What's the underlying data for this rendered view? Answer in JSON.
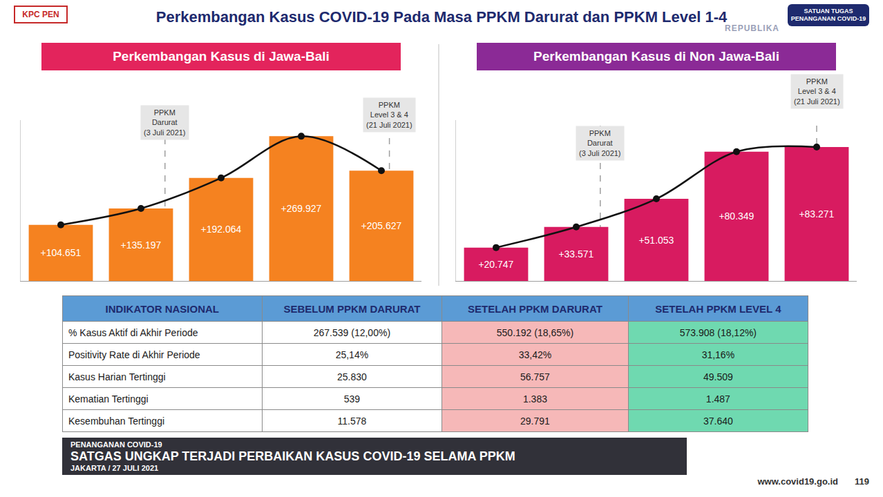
{
  "header": {
    "title": "Perkembangan Kasus COVID-19 Pada Masa PPKM Darurat dan PPKM Level 1-4",
    "logo_left": "KPC PEN",
    "logo_right": "SATUAN TUGAS PENANGANAN COVID-19",
    "watermark": "REPUBLIKA"
  },
  "chart_data": [
    {
      "type": "bar",
      "title": "Perkembangan Kasus di Jawa-Bali",
      "categories": [
        null,
        null,
        null,
        null,
        null
      ],
      "values": [
        104651,
        135197,
        192064,
        269927,
        205627
      ],
      "value_labels": [
        "+104.651",
        "+135.197",
        "+192.064",
        "+269.927",
        "+205.627"
      ],
      "color": "#f58220",
      "data_labels": true,
      "tick_labels": false,
      "grid": false,
      "ylim": [
        0,
        300000
      ],
      "yticks": [],
      "line_style": "solid",
      "marker": "circle",
      "annotations": [
        {
          "x": 1.3,
          "lines": [
            "PPKM",
            "Darurat",
            "(3 Juli 2021)"
          ]
        },
        {
          "x": 4.1,
          "lines": [
            "PPKM",
            "Level 3 & 4",
            "(21 Juli 2021)"
          ]
        }
      ]
    },
    {
      "type": "bar",
      "title": "Perkembangan Kasus di Non Jawa-Bali",
      "categories": [
        null,
        null,
        null,
        null,
        null
      ],
      "values": [
        20747,
        33571,
        51053,
        80349,
        83271
      ],
      "value_labels": [
        "+20.747",
        "+33.571",
        "+51.053",
        "+80.349",
        "+83.271"
      ],
      "color": "#d81b60",
      "data_labels": true,
      "tick_labels": false,
      "grid": false,
      "ylim": [
        0,
        100000
      ],
      "yticks": [],
      "line_style": "solid",
      "marker": "circle",
      "annotations": [
        {
          "x": 1.3,
          "lines": [
            "PPKM",
            "Darurat",
            "(3 Juli 2021)"
          ]
        },
        {
          "x": 4,
          "lines": [
            "PPKM",
            "Level 3 & 4",
            "(21 Juli 2021)"
          ]
        }
      ]
    }
  ],
  "table": {
    "header": [
      "INDIKATOR NASIONAL",
      "SEBELUM PPKM DARURAT",
      "SETELAH PPKM DARURAT",
      "SETELAH PPKM LEVEL 4"
    ],
    "rows": [
      [
        "% Kasus Aktif di Akhir Periode",
        "267.539 (12,00%)",
        "550.192 (18,65%)",
        "573.908 (18,12%)"
      ],
      [
        "Positivity Rate di Akhir Periode",
        "25,14%",
        "33,42%",
        "31,16%"
      ],
      [
        "Kasus Harian Tertinggi",
        "25.830",
        "56.757",
        "49.509"
      ],
      [
        "Kematian Tertinggi",
        "539",
        "1.383",
        "1.487"
      ],
      [
        "Kesembuhan Tertinggi",
        "11.578",
        "29.791",
        "37.640"
      ]
    ]
  },
  "caption": {
    "kicker": "PENANGANAN COVID-19",
    "headline": "SATGAS UNGKAP TERJADI PERBAIKAN KASUS COVID-19 SELAMA PPKM",
    "dateline": "JAKARTA / 27 JULI 2021"
  },
  "footer": [
    "www.covid19.go.id",
    "119"
  ]
}
